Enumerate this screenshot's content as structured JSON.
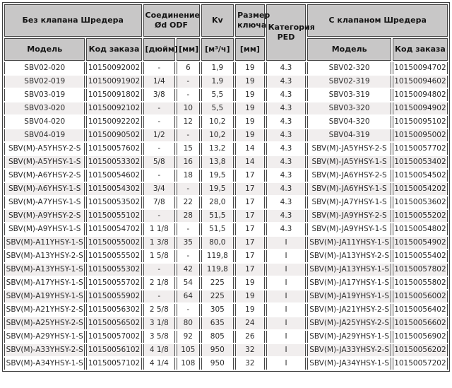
{
  "header": {
    "group_without_schrader": "Без клапана Шредера",
    "group_connection": "Соединение Ød ODF",
    "group_kv": "Kv",
    "group_key_size": "Размер ключа",
    "group_ped": "Категория PED",
    "group_with_schrader": "С клапаном Шредера",
    "sub_model_left": "Модель",
    "sub_order_code_left": "Код заказа",
    "sub_inch": "[дюйм]",
    "sub_mm": "[мм]",
    "sub_kv_unit": "[м³/ч]",
    "sub_key_mm": "[мм]",
    "sub_model_right": "Модель",
    "sub_order_code_right": "Код заказа"
  },
  "colors": {
    "header_bg": "#c8c7c7",
    "row_alt_bg": "#f1eeee",
    "border": "#454545",
    "text": "#2b2b2b"
  },
  "table": {
    "column_ids": [
      "model-without",
      "order-code-without",
      "inch",
      "mm",
      "kv",
      "key-size",
      "ped-category",
      "model-with",
      "order-code-with"
    ],
    "rows": [
      [
        "SBV02-020",
        "10150092002",
        "-",
        "6",
        "1,9",
        "19",
        "4.3",
        "SBV02-320",
        "10150094702"
      ],
      [
        "SBV02-019",
        "10150091902",
        "1/4",
        "-",
        "1,9",
        "19",
        "4.3",
        "SBV02-319",
        "10150094602"
      ],
      [
        "SBV03-019",
        "10150091802",
        "3/8",
        "-",
        "5,5",
        "19",
        "4.3",
        "SBV03-319",
        "10150094802"
      ],
      [
        "SBV03-020",
        "10150092102",
        "-",
        "10",
        "5,5",
        "19",
        "4.3",
        "SBV03-320",
        "10150094902"
      ],
      [
        "SBV04-020",
        "10150092202",
        "-",
        "12",
        "10,2",
        "19",
        "4.3",
        "SBV04-320",
        "10150095102"
      ],
      [
        "SBV04-019",
        "10150090502",
        "1/2",
        "-",
        "10,2",
        "19",
        "4.3",
        "SBV04-319",
        "10150095002"
      ],
      [
        "SBV(M)-A5YHSY-2-S",
        "10150057602",
        "-",
        "15",
        "13,2",
        "14",
        "4.3",
        "SBV(M)-JA5YHSY-2-S",
        "10150057702"
      ],
      [
        "SBV(M)-A5YHSY-1-S",
        "10150053302",
        "5/8",
        "16",
        "13,8",
        "14",
        "4.3",
        "SBV(M)-JA5YHSY-1-S",
        "10150053402"
      ],
      [
        "SBV(M)-A6YHSY-2-S",
        "10150054602",
        "-",
        "18",
        "19,5",
        "17",
        "4.3",
        "SBV(M)-JA6YHSY-2-S",
        "10150054502"
      ],
      [
        "SBV(M)-A6YHSY-1-S",
        "10150054302",
        "3/4",
        "-",
        "19,5",
        "17",
        "4.3",
        "SBV(M)-JA6YHSY-1-S",
        "10150054202"
      ],
      [
        "SBV(M)-A7YHSY-1-S",
        "10150053502",
        "7/8",
        "22",
        "28,0",
        "17",
        "4.3",
        "SBV(M)-JA7YHSY-1-S",
        "10150053602"
      ],
      [
        "SBV(M)-A9YHSY-2-S",
        "10150055102",
        "-",
        "28",
        "51,5",
        "17",
        "4.3",
        "SBV(M)-JA9YHSY-2-S",
        "10150055202"
      ],
      [
        "SBV(M)-A9YHSY-1-S",
        "10150054702",
        "1 1/8",
        "-",
        "51,5",
        "17",
        "4.3",
        "SBV(M)-JA9YHSY-1-S",
        "10150054802"
      ],
      [
        "SBV(M)-A11YHSY-1-S",
        "10150055002",
        "1 3/8",
        "35",
        "80,0",
        "17",
        "I",
        "SBV(M)-JA11YHSY-1-S",
        "10150054902"
      ],
      [
        "SBV(M)-A13YHSY-2-S",
        "10150055502",
        "1 5/8",
        "-",
        "119,8",
        "17",
        "I",
        "SBV(M)-JA13YHSY-2-S",
        "10150055402"
      ],
      [
        "SBV(M)-A13YHSY-1-S",
        "10150055302",
        "-",
        "42",
        "119,8",
        "17",
        "I",
        "SBV(M)-JA13YHSY-1-S",
        "10150057802"
      ],
      [
        "SBV(M)-A17YHSY-1-S",
        "10150055702",
        "2 1/8",
        "54",
        "225",
        "19",
        "I",
        "SBV(M)-JA17YHSY-1-S",
        "10150055802"
      ],
      [
        "SBV(M)-A19YHSY-1-S",
        "10150055902",
        "-",
        "64",
        "225",
        "19",
        "I",
        "SBV(M)-JA19YHSY-1-S",
        "10150056002"
      ],
      [
        "SBV(M)-A21YHSY-2-S",
        "10150056302",
        "2 5/8",
        "-",
        "305",
        "19",
        "I",
        "SBV(M)-JA21YHSY-2-S",
        "10150056402"
      ],
      [
        "SBV(M)-A25YHSY-2-S",
        "10150056502",
        "3 1/8",
        "80",
        "635",
        "24",
        "I",
        "SBV(M)-JA25YHSY-2-S",
        "10150056602"
      ],
      [
        "SBV(M)-A29YHSY-1-S",
        "10150057002",
        "3 5/8",
        "92",
        "805",
        "26",
        "I",
        "SBV(M)-JA29YHSY-1-S",
        "10150056902"
      ],
      [
        "SBV(M)-A33YHSY-2-S",
        "10150056102",
        "4 1/8",
        "105",
        "950",
        "32",
        "I",
        "SBV(M)-JA33YHSY-2-S",
        "10150056202"
      ],
      [
        "SBV(M)-A34YHSY-1-S",
        "10150057102",
        "4 1/4",
        "108",
        "950",
        "32",
        "I",
        "SBV(M)-JA34YHSY-1-S",
        "10150057202"
      ]
    ]
  }
}
